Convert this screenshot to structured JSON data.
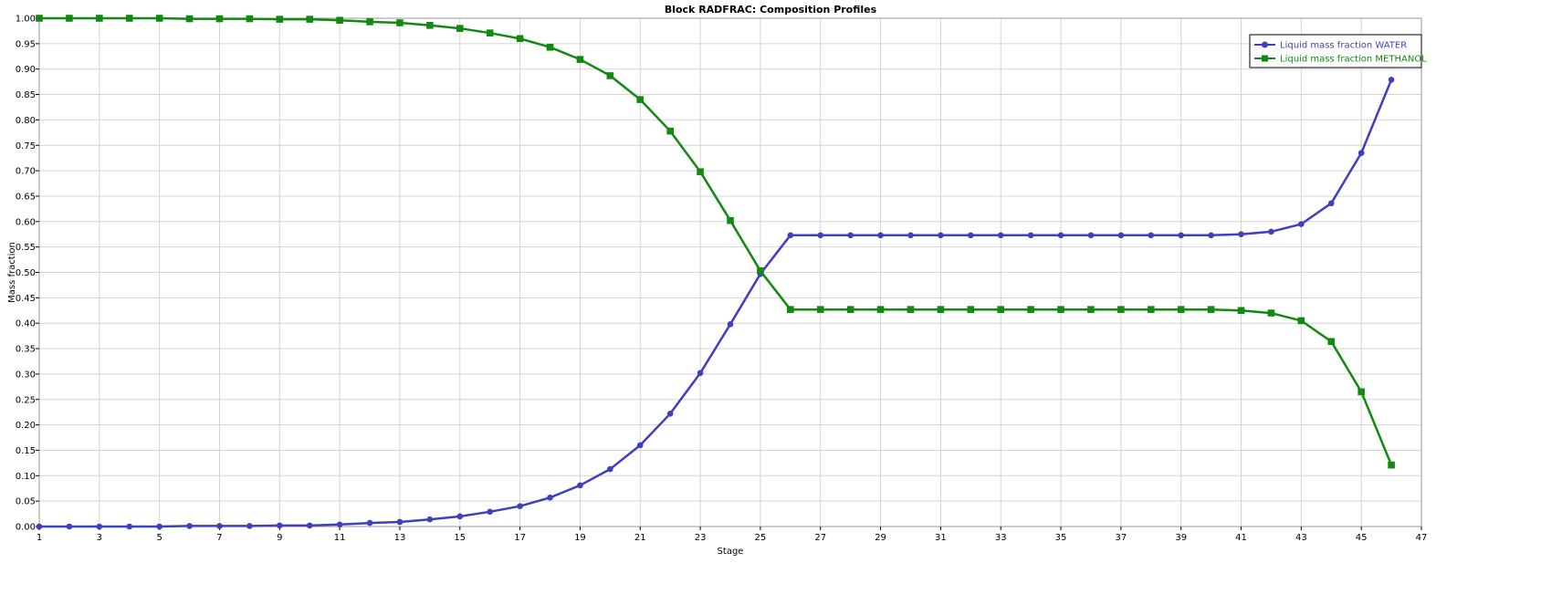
{
  "chart_data": {
    "type": "line",
    "title": "Block RADFRAC: Composition Profiles",
    "xlabel": "Stage",
    "ylabel": "Mass fraction",
    "xlim": [
      1,
      47
    ],
    "ylim": [
      0,
      1
    ],
    "xticks": [
      1,
      3,
      5,
      7,
      9,
      11,
      13,
      15,
      17,
      19,
      21,
      23,
      25,
      27,
      29,
      31,
      33,
      35,
      37,
      39,
      41,
      43,
      45,
      47
    ],
    "yticks": [
      0,
      0.05,
      0.1,
      0.15,
      0.2,
      0.25,
      0.3,
      0.35,
      0.4,
      0.45,
      0.5,
      0.55,
      0.6,
      0.65,
      0.7,
      0.75,
      0.8,
      0.85,
      0.9,
      0.95,
      1.0
    ],
    "grid": true,
    "legend_position": "top-right",
    "x": [
      1,
      2,
      3,
      4,
      5,
      6,
      7,
      8,
      9,
      10,
      11,
      12,
      13,
      14,
      15,
      16,
      17,
      18,
      19,
      20,
      21,
      22,
      23,
      24,
      25,
      26,
      27,
      28,
      29,
      30,
      31,
      32,
      33,
      34,
      35,
      36,
      37,
      38,
      39,
      40,
      41,
      42,
      43,
      44,
      45,
      46
    ],
    "series": [
      {
        "name": "Liquid mass fraction WATER",
        "color": "#3f3fbf",
        "marker": "circle",
        "values": [
          0.0,
          0.0,
          0.0,
          0.0,
          0.0,
          0.001,
          0.001,
          0.001,
          0.002,
          0.002,
          0.004,
          0.007,
          0.009,
          0.014,
          0.02,
          0.029,
          0.04,
          0.057,
          0.081,
          0.113,
          0.16,
          0.222,
          0.302,
          0.398,
          0.497,
          0.573,
          0.573,
          0.573,
          0.573,
          0.573,
          0.573,
          0.573,
          0.573,
          0.573,
          0.573,
          0.573,
          0.573,
          0.573,
          0.573,
          0.573,
          0.575,
          0.58,
          0.595,
          0.636,
          0.735,
          0.879
        ]
      },
      {
        "name": "Liquid mass fraction METHANOL",
        "color": "#138913",
        "marker": "square",
        "values": [
          1.0,
          1.0,
          1.0,
          1.0,
          1.0,
          0.999,
          0.999,
          0.999,
          0.998,
          0.998,
          0.996,
          0.993,
          0.991,
          0.986,
          0.98,
          0.971,
          0.96,
          0.943,
          0.919,
          0.887,
          0.84,
          0.778,
          0.698,
          0.602,
          0.503,
          0.427,
          0.427,
          0.427,
          0.427,
          0.427,
          0.427,
          0.427,
          0.427,
          0.427,
          0.427,
          0.427,
          0.427,
          0.427,
          0.427,
          0.427,
          0.425,
          0.42,
          0.405,
          0.364,
          0.265,
          0.121
        ]
      }
    ]
  }
}
